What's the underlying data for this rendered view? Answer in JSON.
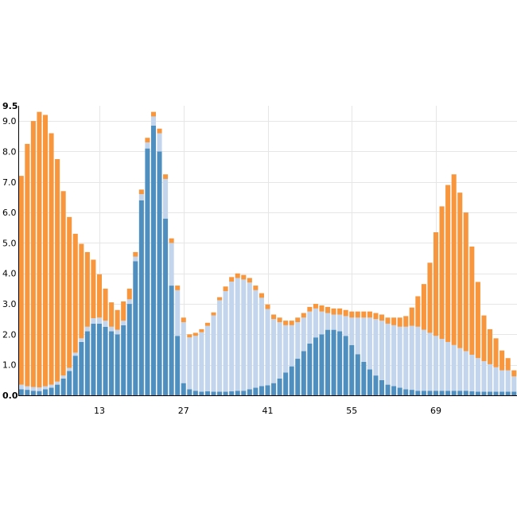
{
  "chart_data": {
    "type": "bar",
    "stacked": true,
    "title": "",
    "xlabel": "",
    "ylabel": "",
    "ylim": [
      0,
      9.5
    ],
    "yticks": [
      "0.0",
      "1.0",
      "2.0",
      "3.0",
      "4.0",
      "5.0",
      "6.0",
      "7.0",
      "8.0",
      "9.0",
      "9.5"
    ],
    "xlim": [
      -0.5,
      82.5
    ],
    "xticks": [
      13,
      27,
      41,
      55,
      69
    ],
    "grid": true,
    "legend": "none",
    "colors": {
      "series_a": "#4f8fc0",
      "series_b": "#c3d5ec",
      "series_c": "#f7963c",
      "grid": "#e6e6e6",
      "axis": "#000000"
    },
    "x": [
      0,
      1,
      2,
      3,
      4,
      5,
      6,
      7,
      8,
      9,
      10,
      11,
      12,
      13,
      14,
      15,
      16,
      17,
      18,
      19,
      20,
      21,
      22,
      23,
      24,
      25,
      26,
      27,
      28,
      29,
      30,
      31,
      32,
      33,
      34,
      35,
      36,
      37,
      38,
      39,
      40,
      41,
      42,
      43,
      44,
      45,
      46,
      47,
      48,
      49,
      50,
      51,
      52,
      53,
      54,
      55,
      56,
      57,
      58,
      59,
      60,
      61,
      62,
      63,
      64,
      65,
      66,
      67,
      68,
      69,
      70,
      71,
      72,
      73,
      74,
      75,
      76,
      77,
      78,
      79,
      80,
      81,
      82
    ],
    "series": [
      {
        "values": [
          0.2,
          0.18,
          0.15,
          0.14,
          0.2,
          0.25,
          0.35,
          0.55,
          0.8,
          1.3,
          1.75,
          2.1,
          2.35,
          2.35,
          2.25,
          2.1,
          2.0,
          2.3,
          3.0,
          4.4,
          6.4,
          8.1,
          8.85,
          8.0,
          5.8,
          3.6,
          1.95,
          0.4,
          0.2,
          0.15,
          0.12,
          0.13,
          0.12,
          0.12,
          0.12,
          0.13,
          0.15,
          0.15,
          0.2,
          0.25,
          0.3,
          0.33,
          0.4,
          0.55,
          0.75,
          0.95,
          1.2,
          1.45,
          1.7,
          1.9,
          2.0,
          2.15,
          2.15,
          2.1,
          1.95,
          1.65,
          1.35,
          1.1,
          0.85,
          0.65,
          0.5,
          0.35,
          0.3,
          0.25,
          0.2,
          0.18,
          0.15,
          0.15,
          0.15,
          0.15,
          0.15,
          0.15,
          0.15,
          0.15,
          0.15,
          0.13,
          0.12,
          0.12,
          0.12,
          0.12,
          0.12,
          0.12,
          0.12
        ]
      },
      {
        "values": [
          0.15,
          0.12,
          0.12,
          0.12,
          0.1,
          0.1,
          0.1,
          0.1,
          0.1,
          0.1,
          0.12,
          0.15,
          0.18,
          0.2,
          0.2,
          0.15,
          0.15,
          0.15,
          0.15,
          0.15,
          0.2,
          0.2,
          0.3,
          0.6,
          1.3,
          1.4,
          1.5,
          2.0,
          1.7,
          1.8,
          1.95,
          2.15,
          2.5,
          3.0,
          3.3,
          3.6,
          3.7,
          3.65,
          3.5,
          3.2,
          2.9,
          2.5,
          2.1,
          1.85,
          1.55,
          1.35,
          1.2,
          1.1,
          1.05,
          0.95,
          0.75,
          0.55,
          0.5,
          0.55,
          0.65,
          0.9,
          1.2,
          1.45,
          1.7,
          1.85,
          1.95,
          2.0,
          2.0,
          2.0,
          2.05,
          2.1,
          2.1,
          2.0,
          1.9,
          1.8,
          1.7,
          1.6,
          1.5,
          1.4,
          1.3,
          1.2,
          1.1,
          1.0,
          0.9,
          0.8,
          0.7,
          0.7,
          0.5
        ]
      },
      {
        "values": [
          6.85,
          7.95,
          8.73,
          9.04,
          8.9,
          8.25,
          7.3,
          6.05,
          4.95,
          3.9,
          3.1,
          2.45,
          1.92,
          1.42,
          1.05,
          0.8,
          0.65,
          0.63,
          0.35,
          0.15,
          0.15,
          0.15,
          0.15,
          0.15,
          0.15,
          0.15,
          0.15,
          0.15,
          0.1,
          0.1,
          0.1,
          0.1,
          0.1,
          0.1,
          0.15,
          0.15,
          0.15,
          0.15,
          0.15,
          0.15,
          0.15,
          0.15,
          0.15,
          0.15,
          0.15,
          0.15,
          0.15,
          0.15,
          0.15,
          0.15,
          0.2,
          0.2,
          0.2,
          0.2,
          0.2,
          0.2,
          0.2,
          0.2,
          0.2,
          0.2,
          0.2,
          0.2,
          0.25,
          0.3,
          0.35,
          0.6,
          1.0,
          1.5,
          2.3,
          3.4,
          4.35,
          5.15,
          5.6,
          5.1,
          4.55,
          3.55,
          2.5,
          1.5,
          1.15,
          0.95,
          0.65,
          0.4,
          0.2
        ]
      }
    ]
  }
}
